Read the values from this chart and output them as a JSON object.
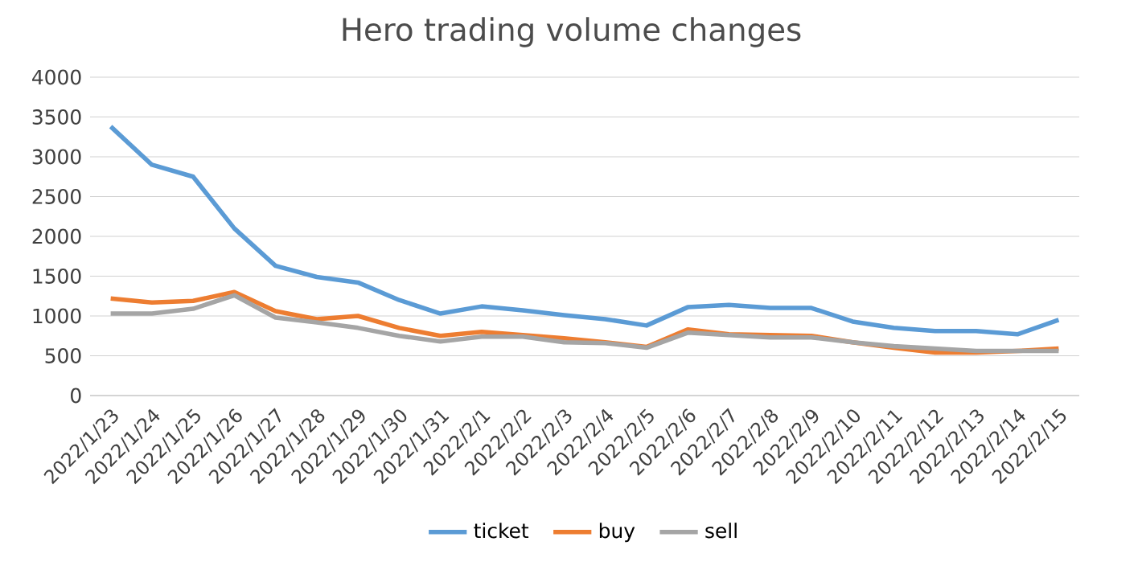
{
  "chart_data": {
    "type": "line",
    "title": "Hero trading volume changes",
    "categories": [
      "2022/1/23",
      "2022/1/24",
      "2022/1/25",
      "2022/1/26",
      "2022/1/27",
      "2022/1/28",
      "2022/1/29",
      "2022/1/30",
      "2022/1/31",
      "2022/2/1",
      "2022/2/2",
      "2022/2/3",
      "2022/2/4",
      "2022/2/5",
      "2022/2/6",
      "2022/2/7",
      "2022/2/8",
      "2022/2/9",
      "2022/2/10",
      "2022/2/11",
      "2022/2/12",
      "2022/2/13",
      "2022/2/14",
      "2022/2/15"
    ],
    "series": [
      {
        "name": "ticket",
        "color": "#5b9bd5",
        "values": [
          3380,
          2900,
          2750,
          2100,
          1630,
          1490,
          1420,
          1200,
          1030,
          1120,
          1070,
          1010,
          960,
          880,
          1110,
          1140,
          1100,
          1100,
          930,
          850,
          810,
          810,
          770,
          950
        ]
      },
      {
        "name": "buy",
        "color": "#ed7d31",
        "values": [
          1220,
          1170,
          1190,
          1300,
          1060,
          960,
          1000,
          850,
          750,
          800,
          760,
          720,
          670,
          610,
          830,
          770,
          760,
          750,
          670,
          600,
          540,
          540,
          560,
          590
        ]
      },
      {
        "name": "sell",
        "color": "#a5a5a5",
        "values": [
          1030,
          1030,
          1090,
          1260,
          980,
          920,
          850,
          750,
          680,
          740,
          740,
          670,
          660,
          600,
          790,
          760,
          730,
          730,
          670,
          620,
          590,
          560,
          560,
          560
        ]
      }
    ],
    "ylim": [
      0,
      4000
    ],
    "yticks": [
      0,
      500,
      1000,
      1500,
      2000,
      2500,
      3000,
      3500,
      4000
    ],
    "grid": "y",
    "legend": "bottom",
    "marker": "none",
    "line_style": "solid"
  }
}
